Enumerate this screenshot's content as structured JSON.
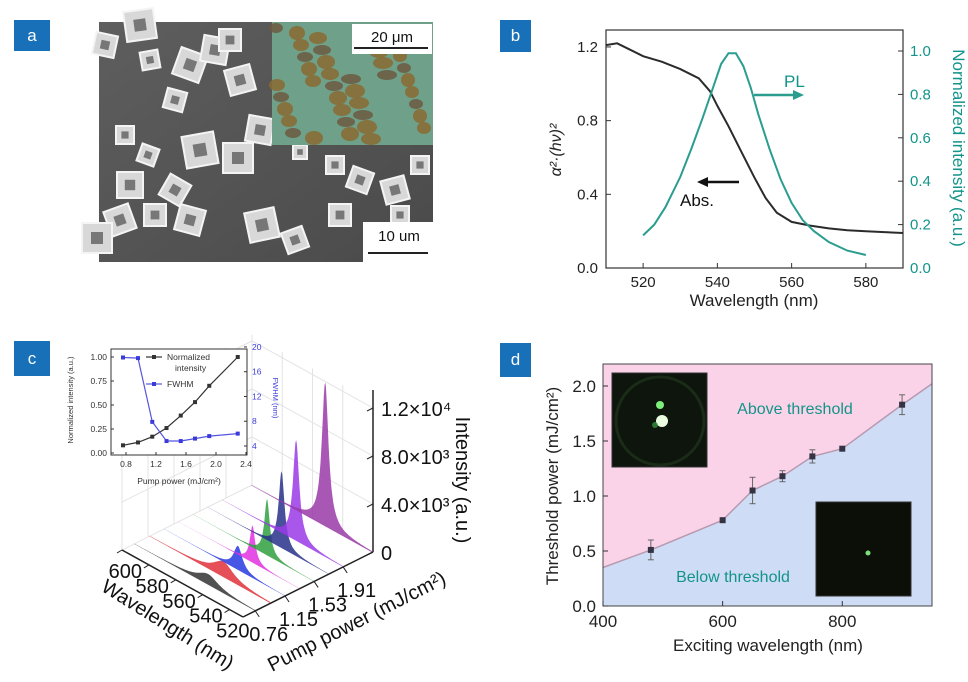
{
  "panels": {
    "a": "a",
    "b": "b",
    "c": "c",
    "d": "d"
  },
  "panel_a": {
    "scale_bar_main": "10 um",
    "scale_bar_inset": "20 μm"
  },
  "chart_data": [
    {
      "panel": "b",
      "type": "line",
      "xlabel": "Wavelength (nm)",
      "ylabel": "α²·(hν)²",
      "ylabel_right": "Normalized intensity (a.u.)",
      "xlim": [
        510,
        590
      ],
      "ylim": [
        0,
        1.3
      ],
      "ylim_right": [
        0,
        1.08
      ],
      "xticks": [
        "520",
        "540",
        "560",
        "580"
      ],
      "yticks": [
        "0.0",
        "0.4",
        "0.8",
        "1.2"
      ],
      "yticks_right": [
        "0.0",
        "0.2",
        "0.4",
        "0.6",
        "0.8",
        "1.0"
      ],
      "annotations": {
        "pl": "PL",
        "abs": "Abs."
      },
      "colors": {
        "abs": "#2b2b2b",
        "pl": "#2a9d8f",
        "right_axis": "#12948a"
      },
      "series": [
        {
          "name": "Abs.",
          "axis": "left",
          "x": [
            510,
            513,
            516,
            520,
            525,
            530,
            535,
            538,
            540,
            543,
            546,
            550,
            553,
            556,
            560,
            565,
            570,
            575,
            580,
            585,
            590
          ],
          "y": [
            1.21,
            1.22,
            1.19,
            1.15,
            1.12,
            1.08,
            1.03,
            0.96,
            0.88,
            0.77,
            0.65,
            0.49,
            0.38,
            0.3,
            0.25,
            0.23,
            0.215,
            0.205,
            0.2,
            0.195,
            0.19
          ]
        },
        {
          "name": "PL",
          "axis": "right",
          "x": [
            520,
            523,
            526,
            530,
            533,
            536,
            539,
            541,
            543,
            545,
            547,
            549,
            551,
            554,
            557,
            560,
            563,
            566,
            570,
            575,
            580
          ],
          "y": [
            0.15,
            0.2,
            0.28,
            0.42,
            0.55,
            0.69,
            0.84,
            0.94,
            0.99,
            0.99,
            0.93,
            0.83,
            0.71,
            0.55,
            0.41,
            0.3,
            0.22,
            0.17,
            0.12,
            0.08,
            0.06
          ]
        }
      ]
    },
    {
      "panel": "c",
      "type": "line",
      "title": "",
      "xlabel": "Pump power (mJ/cm²)",
      "ylabel": "Normalized intensity (a.u.)",
      "ylabel_right": "FWHM (nm)",
      "xlim": [
        0.6,
        2.4
      ],
      "ylim": [
        0,
        1.05
      ],
      "ylim_right": [
        3.4,
        20
      ],
      "xticks": [
        "0.8",
        "1.2",
        "1.6",
        "2.0",
        "2.4"
      ],
      "yticks": [
        "0.00",
        "0.25",
        "0.50",
        "0.75",
        "1.00"
      ],
      "yticks_right": [
        "4",
        "8",
        "12",
        "16",
        "20"
      ],
      "legend": [
        "Normalized intensity",
        "FWHM"
      ],
      "legend_position": "top-center",
      "colors": {
        "intensity": "#333333",
        "fwhm": "#3b3bdc"
      },
      "x": [
        0.76,
        0.96,
        1.15,
        1.34,
        1.53,
        1.72,
        1.91,
        2.29
      ],
      "series": [
        {
          "name": "Normalized intensity",
          "axis": "left",
          "values": [
            0.08,
            0.11,
            0.17,
            0.26,
            0.39,
            0.53,
            0.7,
            1.0
          ]
        },
        {
          "name": "FWHM",
          "axis": "right",
          "values": [
            18.3,
            18.2,
            7.9,
            4.8,
            4.8,
            5.2,
            5.6,
            6.0
          ]
        }
      ]
    },
    {
      "panel": "c-3d",
      "type": "area",
      "xlabel": "Wavelength (nm)",
      "ylabel": "Pump power (mJ/cm²)",
      "zlabel": "Intensity (a.u.)",
      "xticks": [
        "600",
        "580",
        "560",
        "540",
        "520"
      ],
      "yticks": [
        "0.76",
        "1.15",
        "1.53",
        "1.91"
      ],
      "zticks": [
        "0",
        "4.0×10³",
        "8.0×10³",
        "1.2×10⁴"
      ],
      "xlim": [
        510,
        600
      ],
      "ylim": [
        0.6,
        2.3
      ],
      "zlim": [
        0,
        14000
      ],
      "peak_wavelength": 545,
      "pump_powers": [
        0.76,
        0.96,
        1.15,
        1.34,
        1.53,
        1.72,
        1.91,
        2.29
      ],
      "peak_intensity": [
        900,
        1300,
        2000,
        3100,
        4700,
        6400,
        8400,
        12000
      ],
      "colors": [
        "#333333",
        "#e0303a",
        "#2838e0",
        "#e030e0",
        "#30a040",
        "#28308a",
        "#9a3ae8",
        "#9a3aa8"
      ]
    },
    {
      "panel": "d",
      "type": "scatter",
      "xlabel": "Exciting wavelength (nm)",
      "ylabel": "Threshold power (mJ/cm²)",
      "xlim": [
        400,
        950
      ],
      "ylim": [
        0,
        2.2
      ],
      "xticks": [
        "400",
        "600",
        "800"
      ],
      "yticks": [
        "0.0",
        "0.5",
        "1.0",
        "1.5",
        "2.0"
      ],
      "regions": {
        "above": "Above threshold",
        "below": "Below threshold"
      },
      "colors": {
        "above": "#fbd3e8",
        "below": "#cfdcf5",
        "boundary": "#b79ab0",
        "points": "#333344",
        "region_text": "#12948a"
      },
      "points": {
        "x": [
          480,
          600,
          650,
          700,
          750,
          800,
          900
        ],
        "y": [
          0.51,
          0.78,
          1.05,
          1.18,
          1.36,
          1.43,
          1.83
        ],
        "err": [
          0.09,
          0.0,
          0.12,
          0.05,
          0.06,
          0.0,
          0.09
        ]
      },
      "boundary": {
        "x": [
          400,
          480,
          600,
          650,
          700,
          750,
          800,
          900,
          950
        ],
        "y": [
          0.35,
          0.51,
          0.78,
          1.05,
          1.18,
          1.36,
          1.43,
          1.83,
          2.02
        ]
      }
    }
  ]
}
